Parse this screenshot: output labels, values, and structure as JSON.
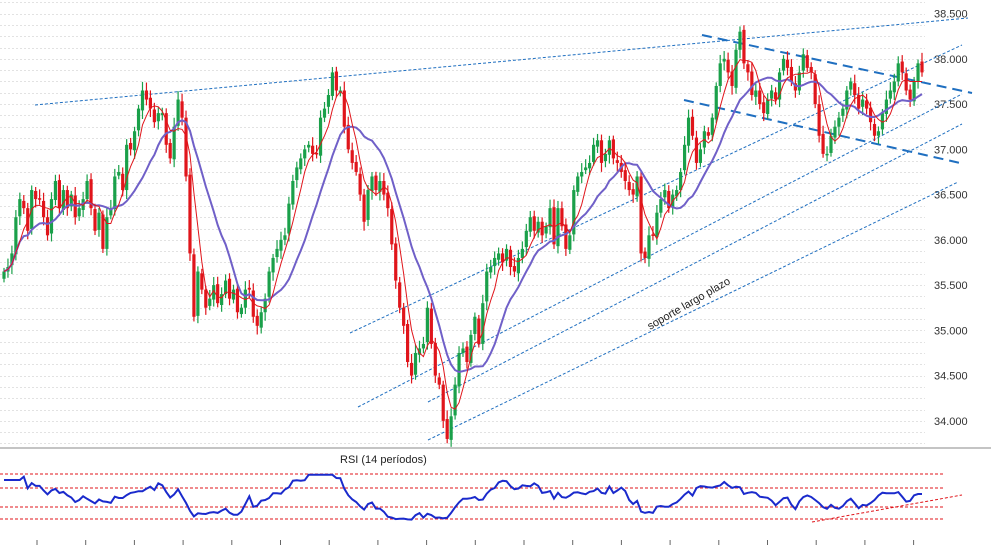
{
  "chart_data": [
    {
      "type": "candlestick",
      "ylim": [
        33700,
        38650
      ],
      "yticks": [
        "34.000",
        "34.500",
        "35.000",
        "35.500",
        "36.000",
        "36.500",
        "37.000",
        "37.500",
        "38.000",
        "38.500"
      ],
      "ytick_values": [
        34000,
        34500,
        35000,
        35500,
        36000,
        36500,
        37000,
        37500,
        38000,
        38500
      ],
      "grid": true,
      "colors": {
        "up": "#1aa04a",
        "down": "#e0151b",
        "sma_fast": "#e0151b",
        "sma_slow": "#7060c8",
        "trend": "#1f6fc0"
      },
      "close_series": [
        35650,
        35700,
        35850,
        36250,
        36450,
        36350,
        36100,
        36550,
        36450,
        36450,
        36250,
        36050,
        36450,
        36650,
        36350,
        36550,
        36350,
        36500,
        36250,
        36350,
        36450,
        36650,
        36350,
        36100,
        36300,
        35900,
        36250,
        36350,
        36700,
        36750,
        36550,
        37050,
        37000,
        37200,
        37450,
        37650,
        37550,
        37450,
        37300,
        37400,
        37400,
        37050,
        36900,
        37250,
        37550,
        37350,
        36700,
        35850,
        35150,
        35650,
        35450,
        35250,
        35350,
        35500,
        35300,
        35400,
        35550,
        35350,
        35450,
        35200,
        35250,
        35450,
        35450,
        35150,
        35050,
        35200,
        35350,
        35650,
        35800,
        35900,
        36000,
        36050,
        36400,
        36650,
        36800,
        36900,
        37000,
        37050,
        36950,
        36950,
        37350,
        37450,
        37600,
        37850,
        37650,
        37650,
        37250,
        37000,
        36850,
        36750,
        36500,
        36200,
        36550,
        36700,
        36550,
        36650,
        36500,
        36350,
        35950,
        35550,
        35250,
        35050,
        34650,
        34500,
        34750,
        34800,
        34850,
        35250,
        34850,
        34500,
        34400,
        34000,
        33800,
        34050,
        34400,
        34750,
        34800,
        34650,
        34950,
        35150,
        34850,
        35300,
        35650,
        35700,
        35800,
        35850,
        35750,
        35900,
        35700,
        35650,
        35800,
        35900,
        36100,
        36250,
        36100,
        36200,
        36050,
        36150,
        36350,
        35950,
        36350,
        36150,
        35900,
        36050,
        36550,
        36700,
        36750,
        36800,
        36850,
        37050,
        37100,
        36850,
        36950,
        37100,
        36900,
        36850,
        36750,
        36650,
        36550,
        36500,
        36700,
        35850,
        35800,
        36050,
        36050,
        36300,
        36450,
        36550,
        36350,
        36500,
        36550,
        36750,
        37050,
        37350,
        37150,
        36850,
        37000,
        37200,
        37150,
        37350,
        37700,
        37950,
        38000,
        37850,
        37700,
        38100,
        38300,
        37950,
        37850,
        37600,
        37650,
        37500,
        37400,
        37550,
        37650,
        37550,
        37850,
        38000,
        37900,
        37750,
        37650,
        37850,
        38050,
        37900,
        37850,
        37500,
        37150,
        36950,
        36950,
        37150,
        37250,
        37350,
        37450,
        37650,
        37750,
        37600,
        37450,
        37550,
        37450,
        37300,
        37150,
        37200,
        37400,
        37550,
        37650,
        37750,
        37950,
        37850,
        37650,
        37550,
        37750,
        37950,
        37850
      ]
    },
    {
      "type": "line",
      "series": [
        {
          "name": "RSI (14 períodos)"
        }
      ]
    }
  ],
  "annotations": {
    "support_label": "soporte largo plazo"
  }
}
